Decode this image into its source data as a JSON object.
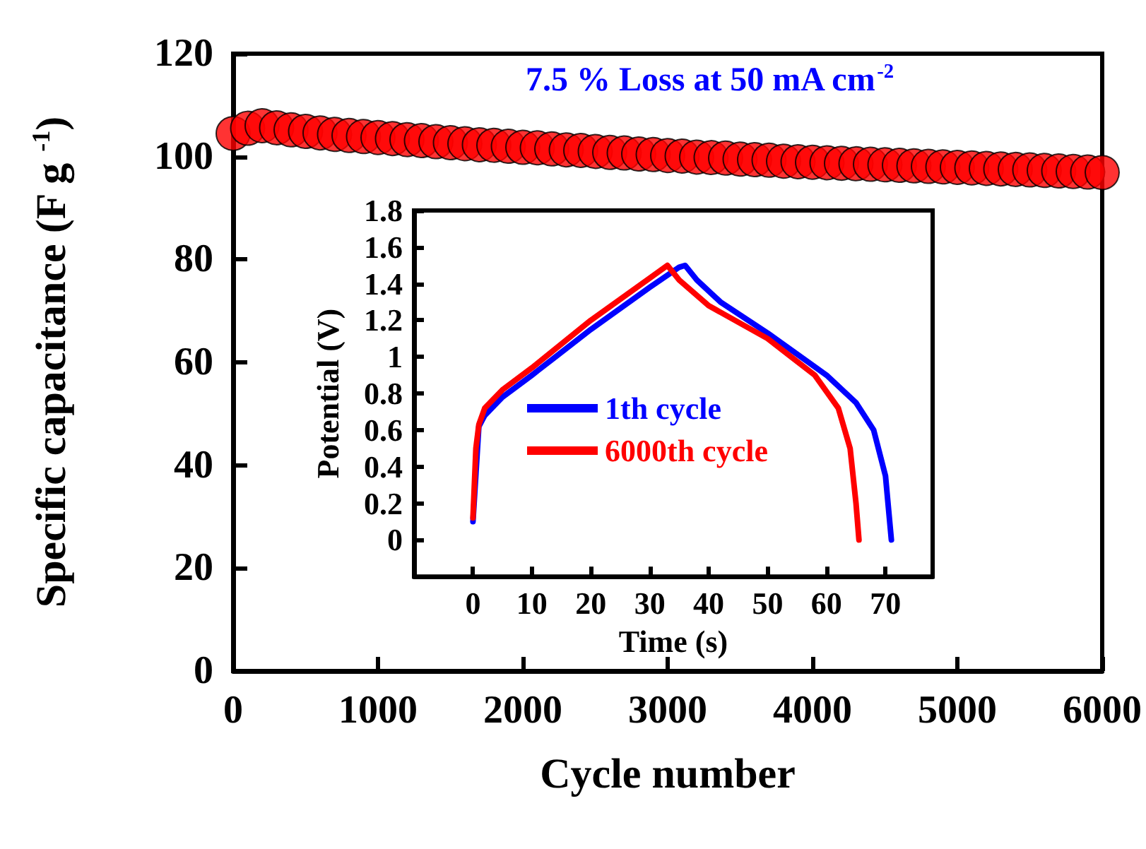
{
  "chart_data": [
    {
      "type": "scatter",
      "xlabel": "Cycle number",
      "ylabel": "Specific capacitance (F g $^{-1}$)",
      "annotations": [
        "7.5 % Loss at 50 mA cm$^{-2}$"
      ],
      "x": [
        0,
        100,
        200,
        300,
        400,
        500,
        600,
        700,
        800,
        900,
        1000,
        1100,
        1200,
        1300,
        1400,
        1500,
        1600,
        1700,
        1800,
        1900,
        2000,
        2100,
        2200,
        2300,
        2400,
        2500,
        2600,
        2700,
        2800,
        2900,
        3000,
        3100,
        3200,
        3300,
        3400,
        3500,
        3600,
        3700,
        3800,
        3900,
        4000,
        4100,
        4200,
        4300,
        4400,
        4500,
        4600,
        4700,
        4800,
        4900,
        5000,
        5100,
        5200,
        5300,
        5400,
        5500,
        5600,
        5700,
        5800,
        5900,
        6000
      ],
      "series": [
        {
          "color": "#ff0000",
          "values": [
            104.5,
            105.5,
            106,
            105.6,
            105.2,
            104.9,
            104.6,
            104.3,
            104.1,
            103.9,
            103.7,
            103.5,
            103.3,
            103.1,
            102.9,
            102.7,
            102.5,
            102.3,
            102.2,
            102,
            101.8,
            101.7,
            101.5,
            101.3,
            101.2,
            101,
            100.8,
            100.7,
            100.5,
            100.4,
            100.2,
            100.1,
            99.9,
            99.8,
            99.7,
            99.5,
            99.4,
            99.3,
            99.1,
            99,
            98.9,
            98.8,
            98.7,
            98.6,
            98.5,
            98.4,
            98.3,
            98.2,
            98.1,
            98,
            97.9,
            97.8,
            97.7,
            97.6,
            97.5,
            97.4,
            97.3,
            97.2,
            97.1,
            97,
            96.9
          ]
        }
      ],
      "xlim": [
        0,
        6000
      ],
      "xticks": [
        0,
        1000,
        2000,
        3000,
        4000,
        5000,
        6000
      ],
      "ylim": [
        0,
        120
      ],
      "yticks": [
        0,
        20,
        40,
        60,
        80,
        100,
        120
      ],
      "marker": "circle",
      "grid": false,
      "legend": false
    },
    {
      "type": "line",
      "xlabel": "Time (s)",
      "ylabel": "Potential (V)",
      "series": [
        {
          "name": "1th cycle",
          "color": "#0000ff",
          "x": [
            0,
            1,
            2,
            5,
            10,
            20,
            30,
            35,
            36,
            38,
            42,
            50,
            60,
            65,
            68,
            70,
            71
          ],
          "values": [
            0.1,
            0.62,
            0.68,
            0.78,
            0.9,
            1.15,
            1.38,
            1.49,
            1.5,
            1.42,
            1.3,
            1.13,
            0.9,
            0.75,
            0.6,
            0.35,
            0
          ]
        },
        {
          "name": "6000th cycle",
          "color": "#ff0000",
          "x": [
            0,
            0.5,
            1,
            2,
            5,
            10,
            20,
            30,
            33,
            35,
            40,
            50,
            58,
            62,
            64,
            65,
            65.5
          ],
          "values": [
            0.12,
            0.5,
            0.63,
            0.72,
            0.82,
            0.94,
            1.2,
            1.43,
            1.5,
            1.42,
            1.28,
            1.1,
            0.9,
            0.72,
            0.5,
            0.2,
            0
          ]
        }
      ],
      "xlim": [
        -10,
        78
      ],
      "xticks": [
        0,
        10,
        20,
        30,
        40,
        50,
        60,
        70
      ],
      "ylim": [
        -0.2,
        1.8
      ],
      "yticks": [
        0,
        0.2,
        0.4,
        0.6,
        0.8,
        1,
        1.2,
        1.4,
        1.6,
        1.8
      ],
      "marker": "none",
      "line_style": "solid",
      "grid": false,
      "legend": "bottom left"
    }
  ]
}
